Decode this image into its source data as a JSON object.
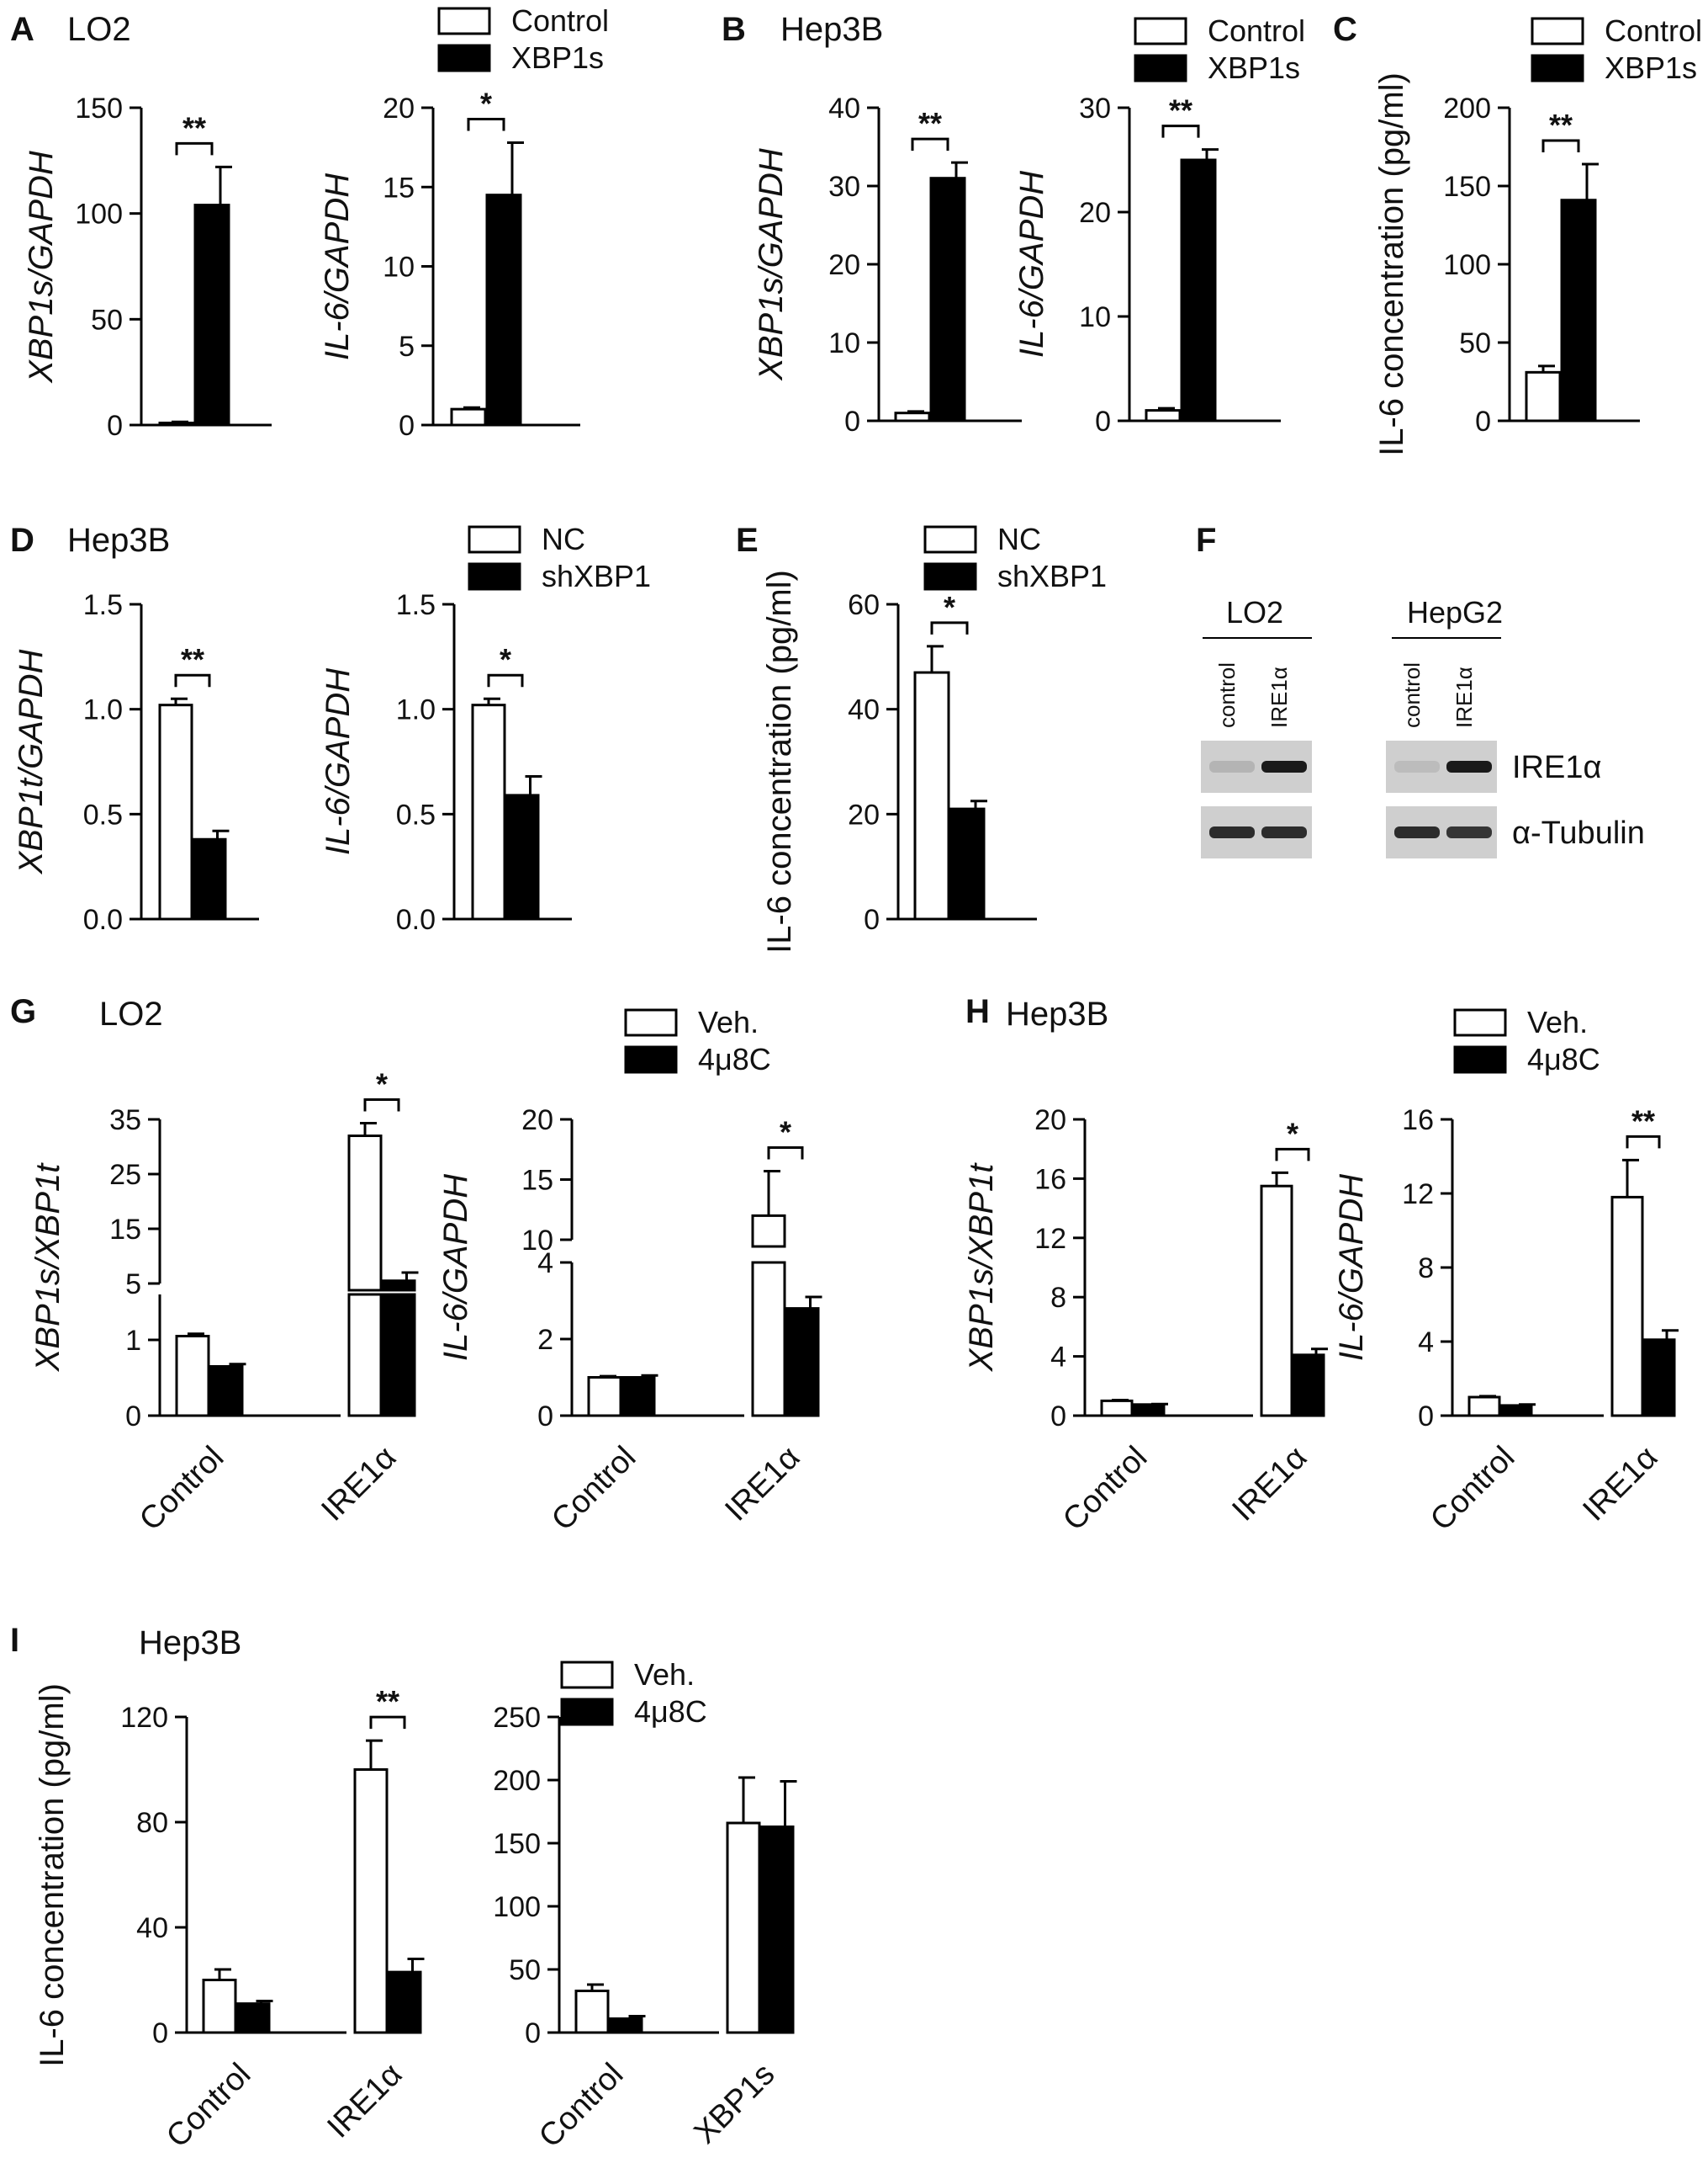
{
  "colors": {
    "control": "#ffffff",
    "treated": "#000000",
    "stroke": "#000000",
    "blot_bg": "#cfcfcf",
    "band": "#1a1a1a"
  },
  "panels": [
    {
      "letter": "A",
      "title": "LO2"
    },
    {
      "letter": "B",
      "title": "Hep3B"
    },
    {
      "letter": "C",
      "title": ""
    },
    {
      "letter": "D",
      "title": "Hep3B"
    },
    {
      "letter": "E",
      "title": ""
    },
    {
      "letter": "F",
      "title": ""
    },
    {
      "letter": "G",
      "title": "LO2"
    },
    {
      "letter": "H",
      "title": "Hep3B"
    },
    {
      "letter": "I",
      "title": "Hep3B"
    }
  ],
  "legends": [
    {
      "id": "A",
      "items": [
        "Control",
        "XBP1s"
      ]
    },
    {
      "id": "B",
      "items": [
        "Control",
        "XBP1s"
      ]
    },
    {
      "id": "C",
      "items": [
        "Control",
        "XBP1s"
      ]
    },
    {
      "id": "D",
      "items": [
        "NC",
        "shXBP1"
      ]
    },
    {
      "id": "E",
      "items": [
        "NC",
        "shXBP1"
      ]
    },
    {
      "id": "G",
      "items": [
        "Veh.",
        "4μ8C"
      ]
    },
    {
      "id": "H",
      "items": [
        "Veh.",
        "4μ8C"
      ]
    },
    {
      "id": "I",
      "items": [
        "Veh.",
        "4μ8C"
      ]
    }
  ],
  "chart_data": [
    {
      "id": "A1",
      "type": "bar",
      "ylabel": "XBP1s/GAPDH",
      "ylabel_italic": true,
      "ylim": [
        0,
        150
      ],
      "yticks": [
        0,
        50,
        100,
        150
      ],
      "groups": [
        ""
      ],
      "series": [
        {
          "name": "Control",
          "values": [
            1
          ],
          "errors": [
            0.5
          ]
        },
        {
          "name": "XBP1s",
          "values": [
            104
          ],
          "errors": [
            18
          ]
        }
      ],
      "significance": [
        {
          "label": "**"
        }
      ]
    },
    {
      "id": "A2",
      "type": "bar",
      "ylabel": "IL-6/GAPDH",
      "ylabel_italic": true,
      "ylim": [
        0,
        20
      ],
      "yticks": [
        0,
        5,
        10,
        15,
        20
      ],
      "groups": [
        ""
      ],
      "series": [
        {
          "name": "Control",
          "values": [
            1
          ],
          "errors": [
            0.1
          ]
        },
        {
          "name": "XBP1s",
          "values": [
            14.5
          ],
          "errors": [
            3.3
          ]
        }
      ],
      "significance": [
        {
          "label": "*"
        }
      ]
    },
    {
      "id": "B1",
      "type": "bar",
      "ylabel": "XBP1s/GAPDH",
      "ylabel_italic": true,
      "ylim": [
        0,
        40
      ],
      "yticks": [
        0,
        10,
        20,
        30,
        40
      ],
      "groups": [
        ""
      ],
      "series": [
        {
          "name": "Control",
          "values": [
            1
          ],
          "errors": [
            0.2
          ]
        },
        {
          "name": "XBP1s",
          "values": [
            31
          ],
          "errors": [
            2
          ]
        }
      ],
      "significance": [
        {
          "label": "**"
        }
      ]
    },
    {
      "id": "B2",
      "type": "bar",
      "ylabel": "IL-6/GAPDH",
      "ylabel_italic": true,
      "ylim": [
        0,
        30
      ],
      "yticks": [
        0,
        10,
        20,
        30
      ],
      "groups": [
        ""
      ],
      "series": [
        {
          "name": "Control",
          "values": [
            1
          ],
          "errors": [
            0.2
          ]
        },
        {
          "name": "XBP1s",
          "values": [
            25
          ],
          "errors": [
            1
          ]
        }
      ],
      "significance": [
        {
          "label": "**"
        }
      ]
    },
    {
      "id": "C",
      "type": "bar",
      "ylabel": "IL-6 concentration (pg/ml)",
      "ylabel_italic": false,
      "ylim": [
        0,
        200
      ],
      "yticks": [
        0,
        50,
        100,
        150,
        200
      ],
      "groups": [
        ""
      ],
      "series": [
        {
          "name": "Control",
          "values": [
            31
          ],
          "errors": [
            4
          ]
        },
        {
          "name": "XBP1s",
          "values": [
            141
          ],
          "errors": [
            23
          ]
        }
      ],
      "significance": [
        {
          "label": "**"
        }
      ]
    },
    {
      "id": "D1",
      "type": "bar",
      "ylabel": "XBP1t/GAPDH",
      "ylabel_italic": true,
      "ylim": [
        0,
        1.5
      ],
      "yticks": [
        "0.0",
        "0.5",
        "1.0",
        "1.5"
      ],
      "groups": [
        ""
      ],
      "series": [
        {
          "name": "NC",
          "values": [
            1.02
          ],
          "errors": [
            0.03
          ]
        },
        {
          "name": "shXBP1",
          "values": [
            0.38
          ],
          "errors": [
            0.04
          ]
        }
      ],
      "significance": [
        {
          "label": "**"
        }
      ]
    },
    {
      "id": "D2",
      "type": "bar",
      "ylabel": "IL-6/GAPDH",
      "ylabel_italic": true,
      "ylim": [
        0,
        1.5
      ],
      "yticks": [
        "0.0",
        "0.5",
        "1.0",
        "1.5"
      ],
      "groups": [
        ""
      ],
      "series": [
        {
          "name": "NC",
          "values": [
            1.02
          ],
          "errors": [
            0.03
          ]
        },
        {
          "name": "shXBP1",
          "values": [
            0.59
          ],
          "errors": [
            0.09
          ]
        }
      ],
      "significance": [
        {
          "label": "*"
        }
      ]
    },
    {
      "id": "E",
      "type": "bar",
      "ylabel": "IL-6 concentration (pg/ml)",
      "ylabel_italic": false,
      "ylim": [
        0,
        60
      ],
      "yticks": [
        0,
        20,
        40,
        60
      ],
      "groups": [
        ""
      ],
      "series": [
        {
          "name": "NC",
          "values": [
            47
          ],
          "errors": [
            5
          ]
        },
        {
          "name": "shXBP1",
          "values": [
            21
          ],
          "errors": [
            1.5
          ]
        }
      ],
      "significance": [
        {
          "label": "*"
        }
      ]
    },
    {
      "id": "G1",
      "type": "bar",
      "ylabel": "XBP1s/XBP1t",
      "ylabel_italic": true,
      "ylim": [
        0,
        35
      ],
      "yticks": [
        0,
        1,
        5,
        15,
        25,
        35
      ],
      "broken_axis": true,
      "groups": [
        "Control",
        "IRE1α"
      ],
      "series": [
        {
          "name": "Veh.",
          "values": [
            1.05,
            32
          ],
          "errors": [
            0.03,
            2.3
          ]
        },
        {
          "name": "4μ8C",
          "values": [
            0.65,
            5.5
          ],
          "errors": [
            0.03,
            1.5
          ]
        }
      ],
      "significance": [
        {
          "label": "*",
          "group": 1
        }
      ]
    },
    {
      "id": "G2",
      "type": "bar",
      "ylabel": "IL-6/GAPDH",
      "ylabel_italic": true,
      "ylim": [
        0,
        20
      ],
      "yticks": [
        0,
        2,
        4,
        10,
        15,
        20
      ],
      "broken_axis": true,
      "groups": [
        "Control",
        "IRE1α"
      ],
      "series": [
        {
          "name": "Veh.",
          "values": [
            1.0,
            12
          ],
          "errors": [
            0.03,
            3.7
          ]
        },
        {
          "name": "4μ8C",
          "values": [
            1.0,
            2.8
          ],
          "errors": [
            0.05,
            0.3
          ]
        }
      ],
      "significance": [
        {
          "label": "*",
          "group": 1
        }
      ]
    },
    {
      "id": "H1",
      "type": "bar",
      "ylabel": "XBP1s/XBP1t",
      "ylabel_italic": true,
      "ylim": [
        0,
        20
      ],
      "yticks": [
        0,
        4,
        8,
        12,
        16,
        20
      ],
      "groups": [
        "Control",
        "IRE1α"
      ],
      "series": [
        {
          "name": "Veh.",
          "values": [
            1.0,
            15.5
          ],
          "errors": [
            0.05,
            0.9
          ]
        },
        {
          "name": "4μ8C",
          "values": [
            0.75,
            4.1
          ],
          "errors": [
            0.03,
            0.4
          ]
        }
      ],
      "significance": [
        {
          "label": "*",
          "group": 1
        }
      ]
    },
    {
      "id": "H2",
      "type": "bar",
      "ylabel": "IL-6/GAPDH",
      "ylabel_italic": true,
      "ylim": [
        0,
        16
      ],
      "yticks": [
        0,
        4,
        8,
        12,
        16
      ],
      "groups": [
        "Control",
        "IRE1α"
      ],
      "series": [
        {
          "name": "Veh.",
          "values": [
            1.0,
            11.8
          ],
          "errors": [
            0.05,
            2.0
          ]
        },
        {
          "name": "4μ8C",
          "values": [
            0.55,
            4.1
          ],
          "errors": [
            0.05,
            0.5
          ]
        }
      ],
      "significance": [
        {
          "label": "**",
          "group": 1
        }
      ]
    },
    {
      "id": "I1",
      "type": "bar",
      "ylabel": "IL-6 concentration (pg/ml)",
      "ylabel_italic": false,
      "ylim": [
        0,
        120
      ],
      "yticks": [
        0,
        40,
        80,
        120
      ],
      "groups": [
        "Control",
        "IRE1α"
      ],
      "series": [
        {
          "name": "Veh.",
          "values": [
            20,
            100
          ],
          "errors": [
            4,
            11
          ]
        },
        {
          "name": "4μ8C",
          "values": [
            11,
            23
          ],
          "errors": [
            1,
            5
          ]
        }
      ],
      "significance": [
        {
          "label": "**",
          "group": 1
        }
      ]
    },
    {
      "id": "I2",
      "type": "bar",
      "ylabel": "",
      "ylabel_italic": false,
      "ylim": [
        0,
        250
      ],
      "yticks": [
        0,
        50,
        100,
        150,
        200,
        250
      ],
      "groups": [
        "Control",
        "XBP1s"
      ],
      "series": [
        {
          "name": "Veh.",
          "values": [
            33,
            166
          ],
          "errors": [
            5,
            36
          ]
        },
        {
          "name": "4μ8C",
          "values": [
            11,
            163
          ],
          "errors": [
            2,
            36
          ]
        }
      ],
      "significance": []
    }
  ],
  "blot": {
    "cells": [
      "LO2",
      "HepG2"
    ],
    "lanes": [
      "control",
      "IRE1α"
    ],
    "targets": [
      "IRE1α",
      "α-Tubulin"
    ],
    "band_intensity": {
      "LO2": {
        "IRE1α": [
          0.15,
          1.0
        ],
        "α-Tubulin": [
          0.9,
          0.9
        ]
      },
      "HepG2": {
        "IRE1α": [
          0.1,
          1.0
        ],
        "α-Tubulin": [
          0.9,
          0.85
        ]
      }
    }
  }
}
